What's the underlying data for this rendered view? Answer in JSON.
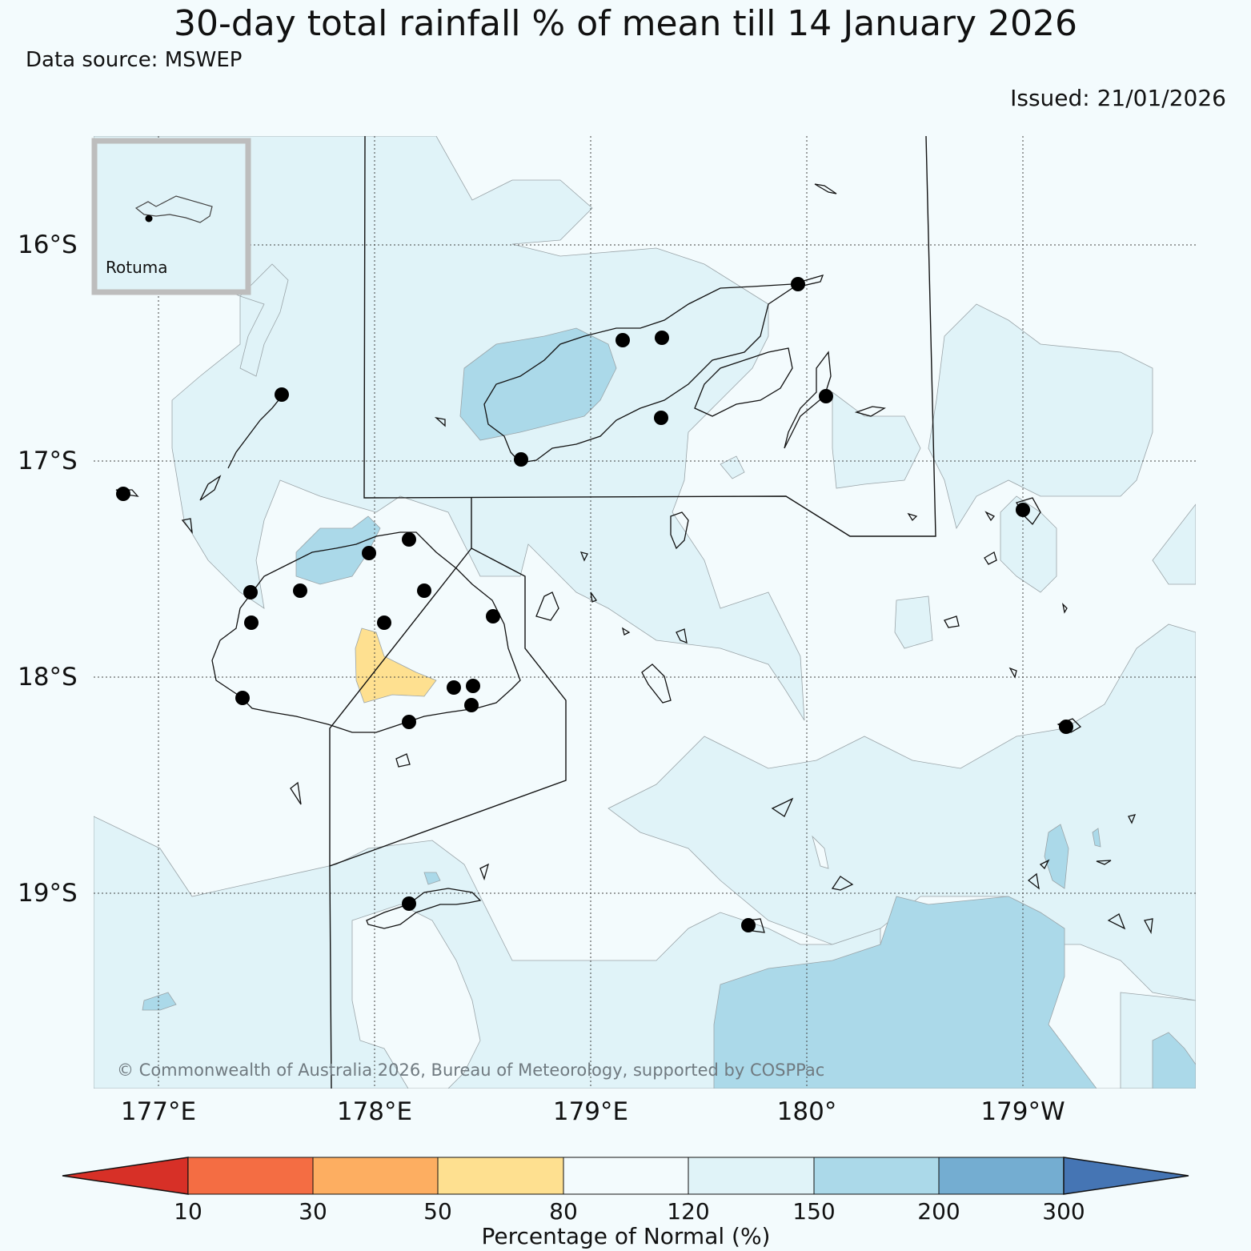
{
  "title": "30-day total rainfall % of mean till 14 January 2026",
  "data_source": "Data source: MSWEP",
  "issued": "Issued: 21/01/2026",
  "copyright": "© Commonwealth of Australia 2026, Bureau of Meteorology, supported by COSPPac",
  "inset": {
    "label": "Rotuma"
  },
  "map": {
    "lat_labels": [
      "16°S",
      "17°S",
      "18°S",
      "19°S"
    ],
    "lon_labels": [
      "177°E",
      "178°E",
      "179°E",
      "180°",
      "179°W"
    ],
    "gridlines": "dotted"
  },
  "colorbar": {
    "title": "Percentage of Normal (%)",
    "ticks": [
      "10",
      "30",
      "50",
      "80",
      "120",
      "150",
      "200",
      "300"
    ],
    "colors": [
      "#d73027",
      "#f46d43",
      "#fdae61",
      "#fee090",
      "#f3fbfd",
      "#e0f3f8",
      "#abd9e9",
      "#74add1",
      "#4575b4"
    ],
    "extend": "both"
  },
  "colors": {
    "background": "#f3fbfd",
    "band_120_150": "#e0f3f8",
    "band_150_200": "#abd9e9",
    "band_50_80": "#fee090"
  }
}
